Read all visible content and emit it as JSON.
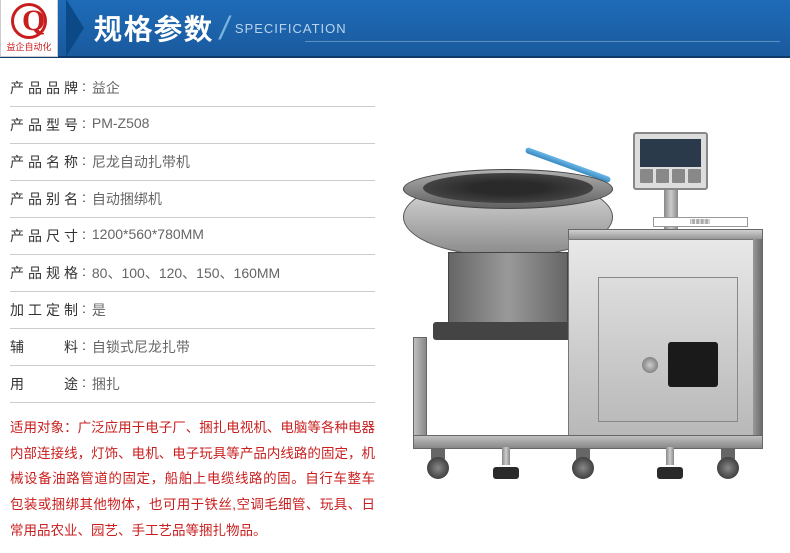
{
  "header": {
    "logo_text": "益企自动化",
    "title_zh": "规格参数",
    "title_en": "SPECIFICATION"
  },
  "specs": [
    {
      "label": "产品品牌",
      "value": "益企"
    },
    {
      "label": "产品型号",
      "value": "PM-Z508"
    },
    {
      "label": "产品名称",
      "value": "尼龙自动扎带机"
    },
    {
      "label": "产品别名",
      "value": "自动捆绑机"
    },
    {
      "label": "产品尺寸",
      "value": "1200*560*780MM"
    },
    {
      "label": "产品规格",
      "value": "80、100、120、150、160MM"
    },
    {
      "label": "加工定制",
      "value": "是"
    },
    {
      "label": "辅　　料",
      "value": "自锁式尼龙扎带"
    },
    {
      "label": "用　　途",
      "value": "捆扎"
    }
  ],
  "description": "适用对象：广泛应用于电子厂、捆扎电视机、电脑等各种电器内部连接线，灯饰、电机、电子玩具等产品内线路的固定，机械设备油路管道的固定，船舶上电缆线路的固。自行车整车 包装或捆绑其他物体，也可用于铁丝,空调毛细管、玩具、日常用品农业、园艺、手工艺品等捆扎物品。",
  "colors": {
    "header_bg_top": "#1e6bb8",
    "header_bg_bottom": "#1a5a9e",
    "logo_red": "#c91e1e",
    "desc_red": "#c91e1e",
    "border_gray": "#cccccc",
    "text_dark": "#333333",
    "text_gray": "#666666"
  },
  "product_label": "|||||||||||||||"
}
